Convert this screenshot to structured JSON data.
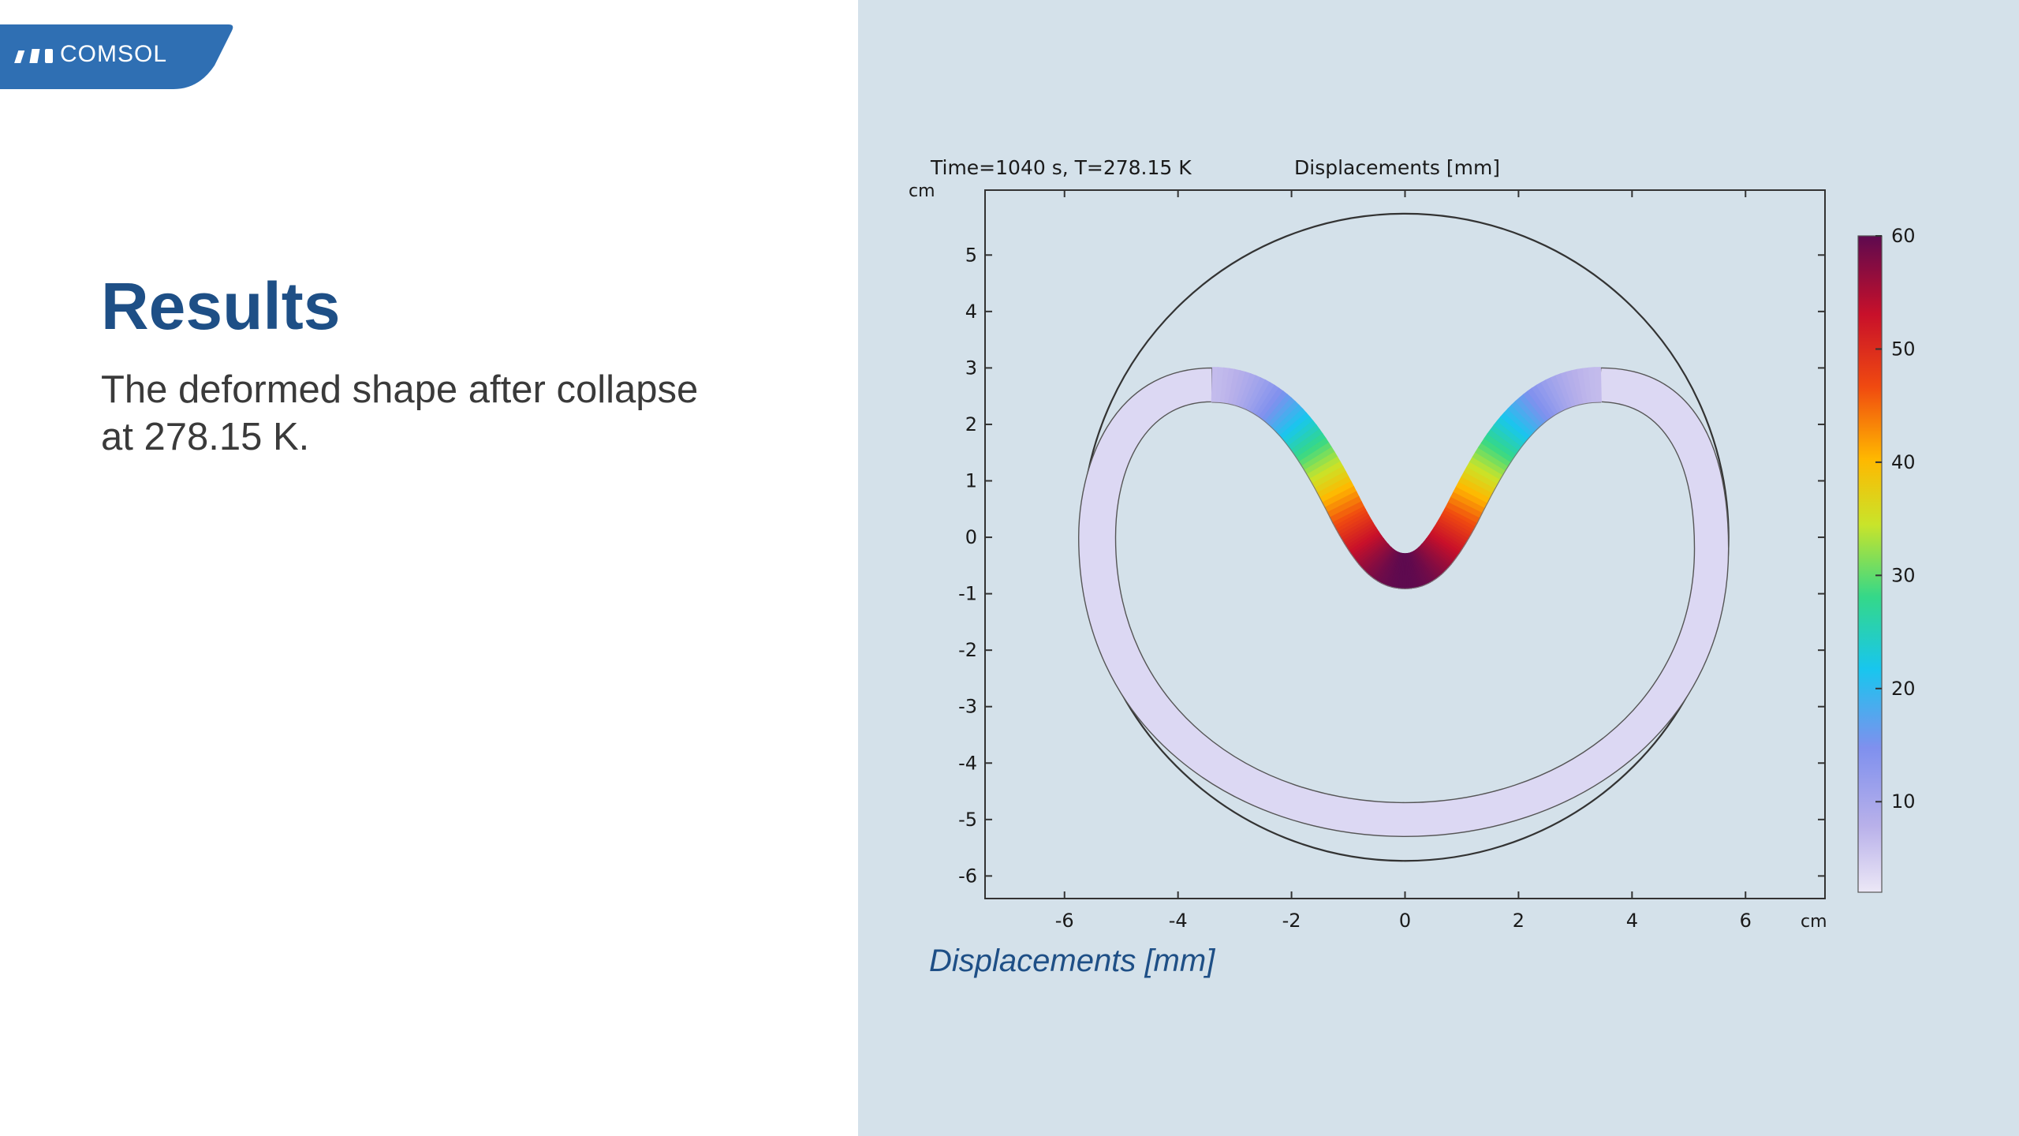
{
  "logo": {
    "text": "COMSOL",
    "color": "#2f6fb3"
  },
  "slide": {
    "title": "Results",
    "description": "The deformed shape after collapse at 278.15 K."
  },
  "plot": {
    "time_label": "Time=1040 s, T=278.15 K",
    "title": "Displacements [mm]",
    "x_unit": "cm",
    "y_unit": "cm",
    "caption": "Displacements [mm]"
  },
  "chart_data": {
    "type": "heatmap",
    "title": "Displacements [mm]",
    "subtitle": "Time=1040 s, T=278.15 K",
    "xlabel": "cm",
    "ylabel": "cm",
    "xlim": [
      -7.4,
      7.4
    ],
    "ylim": [
      -6.4,
      6.15
    ],
    "xticks": [
      -6,
      -4,
      -2,
      0,
      2,
      4,
      6
    ],
    "yticks": [
      -6,
      -5,
      -4,
      -3,
      -2,
      -1,
      0,
      1,
      2,
      3,
      4,
      5
    ],
    "colorbar": {
      "min": 2,
      "max": 60,
      "ticks": [
        10,
        20,
        30,
        40,
        50,
        60
      ],
      "colormap": "rainbow-light"
    },
    "reference_circle_radius": 5.7,
    "grid": false,
    "legend": "right"
  }
}
